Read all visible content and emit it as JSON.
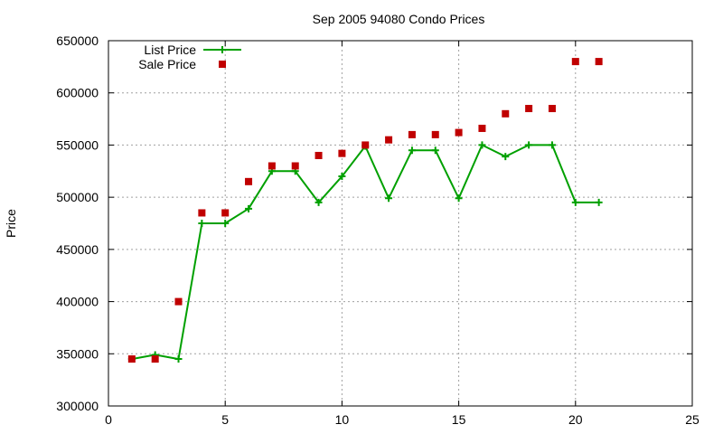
{
  "chart_data": {
    "type": "line",
    "title": "Sep 2005 94080 Condo Prices",
    "xlabel": "",
    "ylabel": "Price",
    "xlim": [
      0,
      25
    ],
    "ylim": [
      300000,
      650000
    ],
    "x_ticks": [
      "0",
      "5",
      "10",
      "15",
      "20",
      "25"
    ],
    "y_ticks": [
      "300000",
      "350000",
      "400000",
      "450000",
      "500000",
      "550000",
      "600000",
      "650000"
    ],
    "grid": true,
    "legend_position": "top-left",
    "series": [
      {
        "name": "List Price",
        "style": "line+cross",
        "color": "#00a000",
        "x": [
          1,
          2,
          3,
          4,
          5,
          6,
          7,
          8,
          9,
          10,
          11,
          12,
          13,
          14,
          15,
          16,
          17,
          18,
          19,
          20,
          21
        ],
        "values": [
          345000,
          349000,
          345000,
          475000,
          475000,
          489000,
          525000,
          525000,
          495000,
          520000,
          549000,
          499000,
          545000,
          545000,
          499000,
          550000,
          539000,
          550000,
          550000,
          495000,
          495000
        ]
      },
      {
        "name": "Sale Price",
        "style": "square",
        "color": "#c00000",
        "x": [
          1,
          2,
          3,
          4,
          5,
          6,
          7,
          8,
          9,
          10,
          11,
          12,
          13,
          14,
          15,
          16,
          17,
          18,
          19,
          20,
          21
        ],
        "values": [
          345000,
          345000,
          400000,
          485000,
          485000,
          515000,
          530000,
          530000,
          540000,
          542000,
          550000,
          555000,
          560000,
          560000,
          562000,
          566000,
          580000,
          585000,
          585000,
          630000,
          630000
        ]
      }
    ]
  }
}
